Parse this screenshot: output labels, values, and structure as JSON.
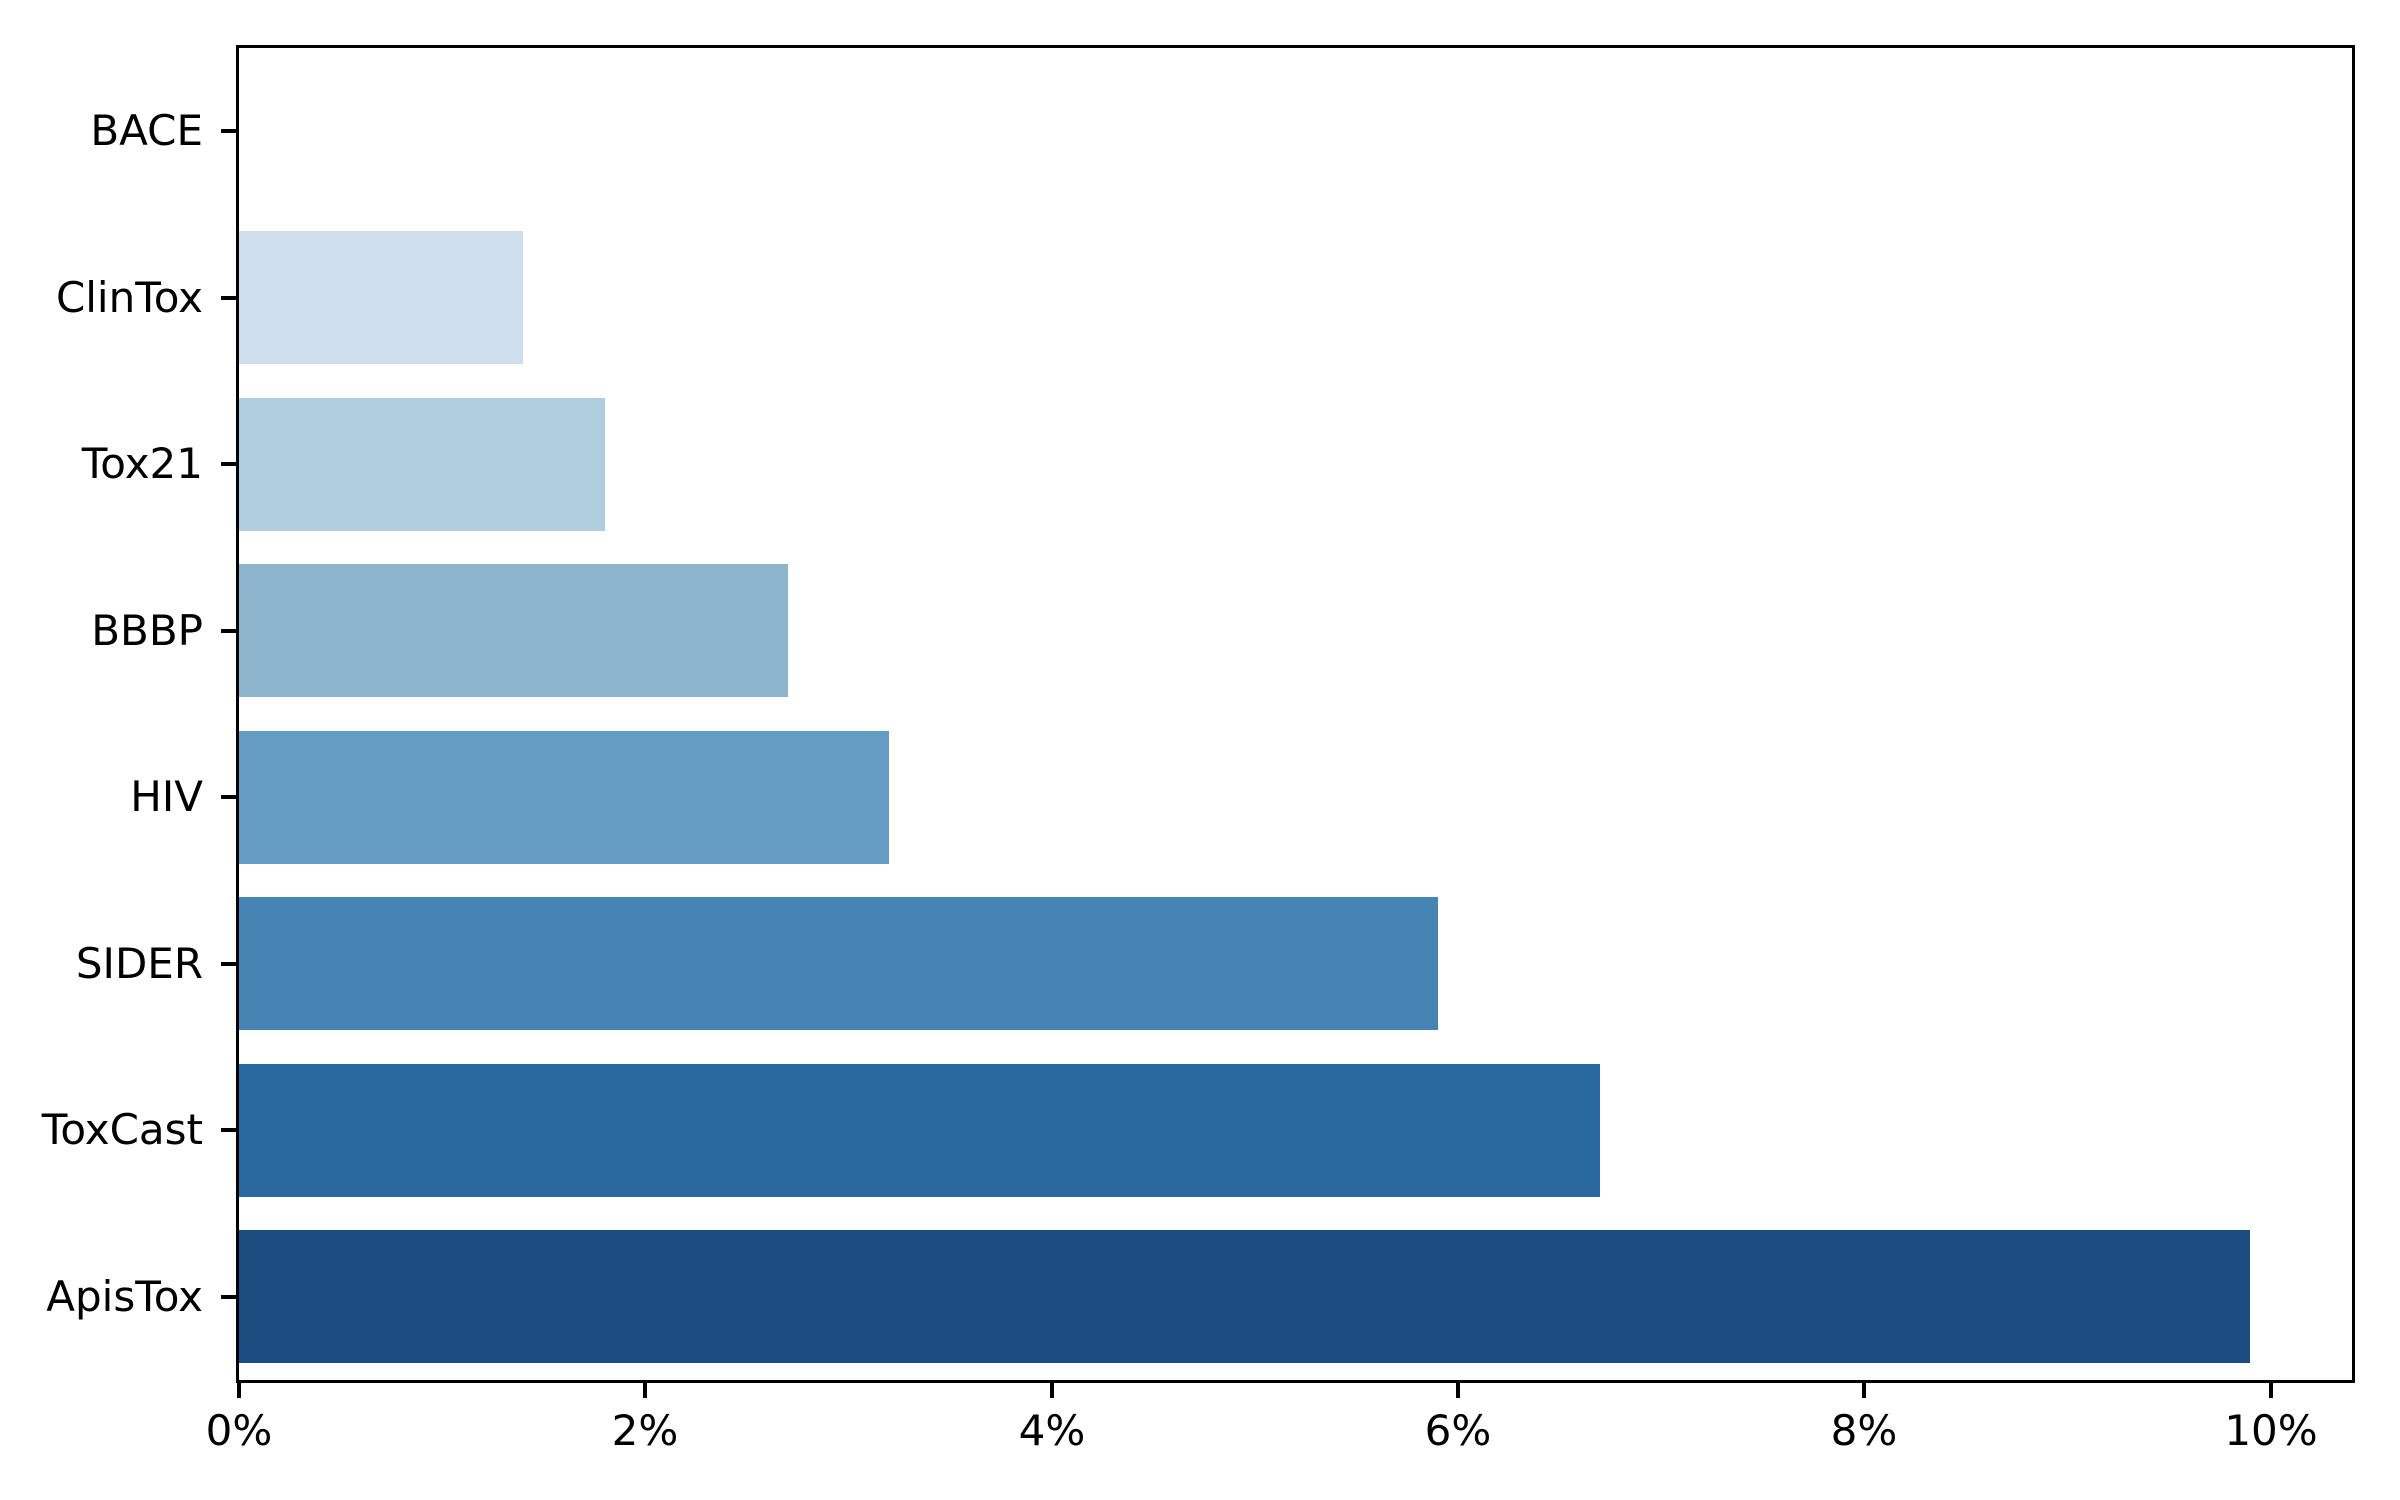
{
  "chart_data": {
    "type": "bar",
    "orientation": "horizontal",
    "title": "",
    "xlabel": "",
    "ylabel": "",
    "categories": [
      "BACE",
      "ClinTox",
      "Tox21",
      "BBBP",
      "HIV",
      "SIDER",
      "ToxCast",
      "ApisTox"
    ],
    "values": [
      0.0,
      1.4,
      1.8,
      2.7,
      3.2,
      5.9,
      6.7,
      9.9
    ],
    "unit": "%",
    "bar_colors": [
      "#f7fbff",
      "#cfdfee",
      "#b0cde0",
      "#8eb5ce",
      "#649cc3",
      "#4684b4",
      "#2a68a0",
      "#1c4d80"
    ],
    "xlim": [
      0,
      10.4
    ],
    "x_ticks": [
      0,
      2,
      4,
      6,
      8,
      10
    ],
    "x_tick_labels": [
      "0%",
      "2%",
      "4%",
      "6%",
      "8%",
      "10%"
    ],
    "grid": false,
    "legend": "none",
    "bar_height_fraction": 0.8,
    "spine_color": "#000000",
    "tick_label_color": "#000000"
  }
}
